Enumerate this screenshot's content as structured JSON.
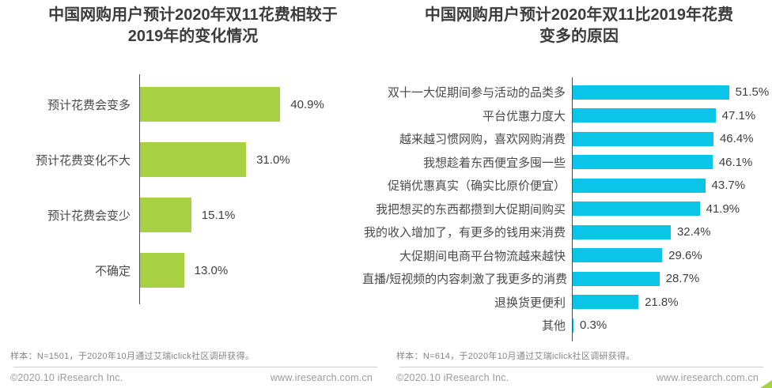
{
  "panels": [
    {
      "title": "中国网购用户预计2020年双11花费相较于\n2019年的变化情况",
      "sample_note": "样本：N=1501，于2020年10月通过艾瑞iclick社区调研获得。",
      "copyright": "©2020.10 iResearch Inc.",
      "website": "www.iresearch.com.cn"
    },
    {
      "title": "中国网购用户预计2020年双11比2019年花费\n变多的原因",
      "sample_note": "样本：N=614，于2020年10月通过艾瑞iclick社区调研获得。",
      "copyright": "©2020.10 iResearch Inc.",
      "website": "www.iresearch.com.cn"
    }
  ],
  "chart_data": [
    {
      "type": "bar",
      "orientation": "horizontal",
      "title": "中国网购用户预计2020年双11花费相较于2019年的变化情况",
      "categories": [
        "预计花费会变多",
        "预计花费变化不大",
        "预计花费会变少",
        "不确定"
      ],
      "values": [
        40.9,
        31.0,
        15.1,
        13.0
      ],
      "value_labels": [
        "40.9%",
        "31.0%",
        "15.1%",
        "13.0%"
      ],
      "unit": "%",
      "bar_color": "#a7d043",
      "xlim": [
        0,
        67
      ],
      "grid": false,
      "legend": false
    },
    {
      "type": "bar",
      "orientation": "horizontal",
      "title": "中国网购用户预计2020年双11比2019年花费变多的原因",
      "categories": [
        "双十一大促期间参与活动的品类多",
        "平台优惠力度大",
        "越来越习惯网购，喜欢网购消费",
        "我想趁着东西便宜多囤一些",
        "促销优惠真实（确实比原价便宜）",
        "我把想买的东西都攒到大促期间购买",
        "我的收入增加了，有更多的钱用来消费",
        "大促期间电商平台物流越来越快",
        "直播/短视频的内容刺激了我更多的消费",
        "退换货更便利",
        "其他"
      ],
      "values": [
        51.5,
        47.1,
        46.4,
        46.1,
        43.7,
        41.9,
        32.4,
        29.6,
        28.7,
        21.8,
        0.3
      ],
      "value_labels": [
        "51.5%",
        "47.1%",
        "46.4%",
        "46.1%",
        "43.7%",
        "41.9%",
        "32.4%",
        "29.6%",
        "28.7%",
        "21.8%",
        "0.3%"
      ],
      "unit": "%",
      "bar_color": "#0bc5e8",
      "xlim": [
        0,
        63
      ],
      "grid": false,
      "legend": false
    }
  ],
  "accent": {
    "corner_triangle_color": "#a7d043",
    "axis_line_color": "#4f4f4f"
  }
}
